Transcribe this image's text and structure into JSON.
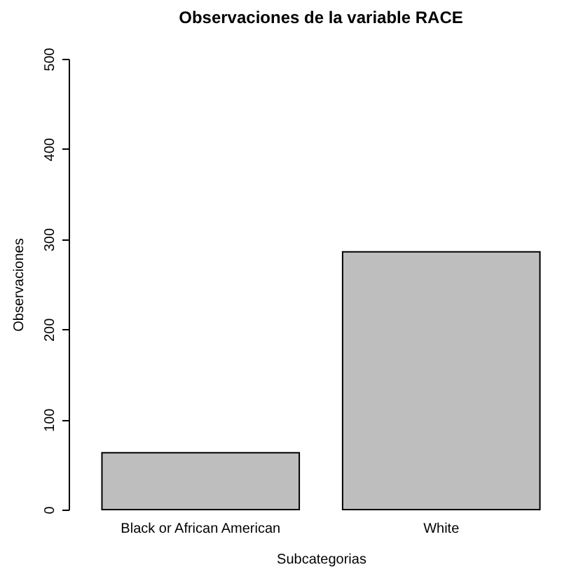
{
  "chart_data": {
    "type": "bar",
    "title": "Observaciones de la variable RACE",
    "xlabel": "Subcategorias",
    "ylabel": "Observaciones",
    "categories": [
      "Black or African American",
      "White"
    ],
    "values": [
      63,
      286
    ],
    "color": "#bebebe",
    "ylim": [
      0,
      500
    ],
    "yticks": [
      0,
      100,
      200,
      300,
      400,
      500
    ],
    "grid": false
  }
}
